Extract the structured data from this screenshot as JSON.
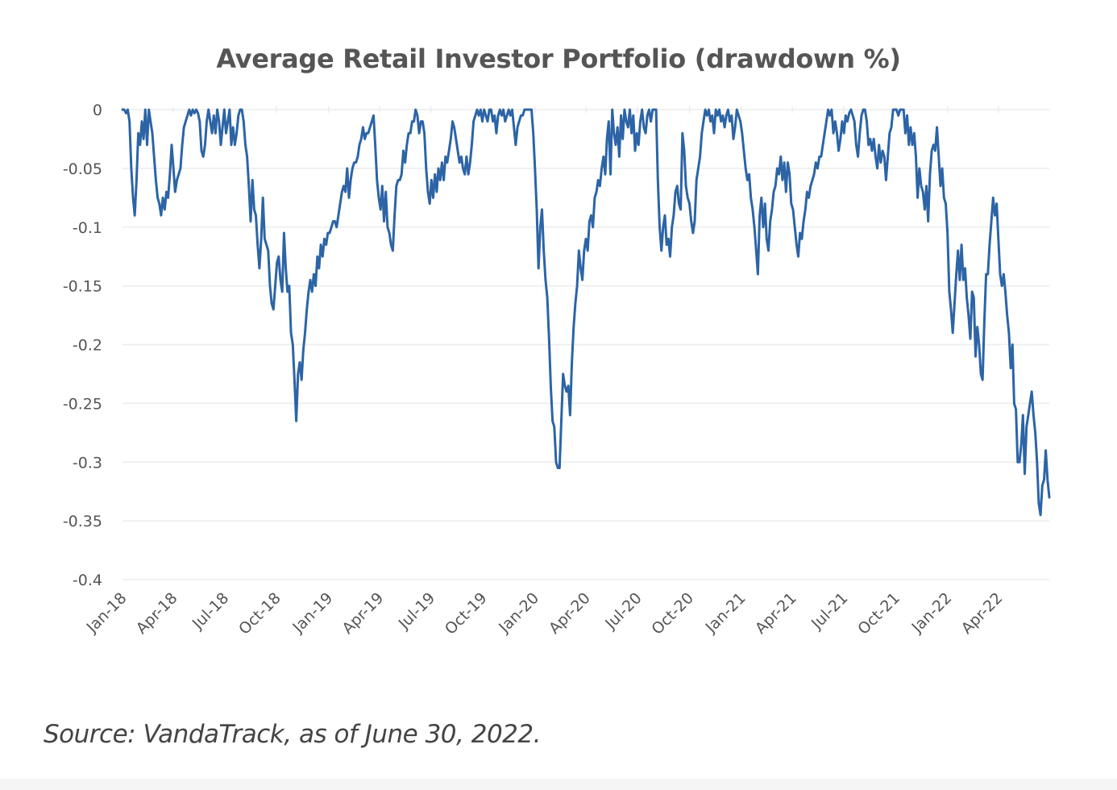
{
  "chart_data": {
    "type": "line",
    "title": "Average Retail Investor Portfolio (drawdown %)",
    "xlabel": "",
    "ylabel": "",
    "ylim": [
      -0.4,
      0
    ],
    "yticks": [
      "0",
      "-0.05",
      "-0.1",
      "-0.15",
      "-0.2",
      "-0.25",
      "-0.3",
      "-0.35",
      "-0.4"
    ],
    "ytick_values": [
      0,
      -0.05,
      -0.1,
      -0.15,
      -0.2,
      -0.25,
      -0.3,
      -0.35,
      -0.4
    ],
    "xticks": [
      "Jan-18",
      "Apr-18",
      "Jul-18",
      "Oct-18",
      "Jan-19",
      "Apr-19",
      "Jul-19",
      "Oct-19",
      "Jan-20",
      "Apr-20",
      "Jul-20",
      "Oct-20",
      "Jan-21",
      "Apr-21",
      "Jul-21",
      "Oct-21",
      "Jan-22",
      "Apr-22"
    ],
    "x_range": [
      "2018-01-01",
      "2022-06-30"
    ],
    "grid": true,
    "legend": "none",
    "series": [
      {
        "name": "Average Retail Investor Portfolio",
        "color": "#2c64a6",
        "sampling": "approximately equally spaced samples from 2018-01-01 to 2022-06-30",
        "values": [
          0,
          0,
          -0.003,
          0,
          -0.01,
          -0.05,
          -0.075,
          -0.09,
          -0.06,
          -0.02,
          -0.03,
          -0.01,
          -0.025,
          0,
          -0.03,
          0,
          -0.01,
          -0.02,
          -0.04,
          -0.06,
          -0.075,
          -0.08,
          -0.09,
          -0.075,
          -0.085,
          -0.07,
          -0.075,
          -0.055,
          -0.03,
          -0.05,
          -0.07,
          -0.06,
          -0.055,
          -0.05,
          -0.03,
          -0.015,
          -0.01,
          -0.005,
          0,
          -0.005,
          0,
          -0.003,
          0,
          -0.003,
          -0.01,
          -0.035,
          -0.04,
          -0.03,
          -0.01,
          0,
          -0.01,
          -0.02,
          -0.005,
          -0.02,
          0,
          -0.01,
          -0.03,
          -0.015,
          0,
          -0.02,
          -0.01,
          0,
          -0.03,
          -0.015,
          -0.03,
          -0.02,
          -0.005,
          0,
          0,
          -0.01,
          -0.03,
          -0.04,
          -0.065,
          -0.095,
          -0.06,
          -0.085,
          -0.09,
          -0.115,
          -0.135,
          -0.11,
          -0.075,
          -0.11,
          -0.115,
          -0.12,
          -0.15,
          -0.165,
          -0.17,
          -0.15,
          -0.13,
          -0.125,
          -0.145,
          -0.155,
          -0.105,
          -0.135,
          -0.155,
          -0.15,
          -0.19,
          -0.2,
          -0.23,
          -0.265,
          -0.225,
          -0.215,
          -0.23,
          -0.205,
          -0.19,
          -0.17,
          -0.155,
          -0.145,
          -0.155,
          -0.14,
          -0.15,
          -0.125,
          -0.135,
          -0.115,
          -0.125,
          -0.11,
          -0.115,
          -0.105,
          -0.105,
          -0.1,
          -0.095,
          -0.095,
          -0.1,
          -0.09,
          -0.08,
          -0.07,
          -0.065,
          -0.07,
          -0.05,
          -0.075,
          -0.06,
          -0.05,
          -0.045,
          -0.045,
          -0.04,
          -0.03,
          -0.025,
          -0.015,
          -0.025,
          -0.02,
          -0.02,
          -0.015,
          -0.01,
          -0.005,
          -0.03,
          -0.06,
          -0.075,
          -0.085,
          -0.065,
          -0.095,
          -0.07,
          -0.1,
          -0.105,
          -0.115,
          -0.12,
          -0.09,
          -0.065,
          -0.06,
          -0.06,
          -0.055,
          -0.035,
          -0.045,
          -0.03,
          -0.02,
          -0.02,
          -0.01,
          -0.01,
          0,
          -0.005,
          -0.02,
          -0.01,
          -0.01,
          -0.02,
          -0.05,
          -0.07,
          -0.08,
          -0.06,
          -0.075,
          -0.055,
          -0.07,
          -0.05,
          -0.06,
          -0.045,
          -0.06,
          -0.04,
          -0.045,
          -0.035,
          -0.025,
          -0.01,
          -0.015,
          -0.025,
          -0.035,
          -0.045,
          -0.04,
          -0.05,
          -0.055,
          -0.04,
          -0.055,
          -0.045,
          -0.03,
          -0.01,
          -0.005,
          0,
          -0.005,
          0,
          -0.01,
          0,
          -0.005,
          -0.01,
          0,
          0,
          -0.01,
          -0.005,
          -0.02,
          -0.005,
          0,
          -0.005,
          0,
          -0.01,
          -0.005,
          0,
          -0.005,
          0,
          -0.015,
          -0.03,
          -0.015,
          -0.01,
          -0.005,
          -0.005,
          0,
          0,
          0,
          0,
          0,
          -0.02,
          -0.05,
          -0.085,
          -0.135,
          -0.1,
          -0.085,
          -0.12,
          -0.145,
          -0.16,
          -0.195,
          -0.235,
          -0.265,
          -0.27,
          -0.3,
          -0.305,
          -0.305,
          -0.265,
          -0.225,
          -0.235,
          -0.24,
          -0.235,
          -0.26,
          -0.215,
          -0.185,
          -0.165,
          -0.15,
          -0.12,
          -0.135,
          -0.145,
          -0.12,
          -0.11,
          -0.12,
          -0.095,
          -0.09,
          -0.1,
          -0.075,
          -0.07,
          -0.06,
          -0.065,
          -0.05,
          -0.04,
          -0.055,
          -0.025,
          -0.01,
          -0.055,
          0,
          -0.02,
          -0.03,
          -0.015,
          -0.04,
          -0.005,
          -0.025,
          0,
          -0.01,
          -0.015,
          0,
          -0.02,
          -0.005,
          -0.035,
          -0.02,
          -0.03,
          -0.01,
          0,
          -0.015,
          -0.02,
          -0.005,
          0,
          -0.01,
          0,
          0,
          0,
          -0.06,
          -0.1,
          -0.12,
          -0.1,
          -0.09,
          -0.115,
          -0.11,
          -0.125,
          -0.1,
          -0.09,
          -0.07,
          -0.065,
          -0.08,
          -0.085,
          -0.02,
          -0.035,
          -0.065,
          -0.075,
          -0.08,
          -0.095,
          -0.105,
          -0.095,
          -0.06,
          -0.05,
          -0.04,
          -0.02,
          -0.01,
          0,
          -0.005,
          0,
          -0.01,
          -0.005,
          -0.02,
          0,
          -0.005,
          0,
          -0.01,
          -0.005,
          -0.015,
          -0.005,
          0,
          -0.01,
          -0.005,
          -0.025,
          -0.015,
          0,
          -0.005,
          -0.01,
          -0.02,
          -0.035,
          -0.05,
          -0.06,
          -0.055,
          -0.075,
          -0.085,
          -0.1,
          -0.12,
          -0.14,
          -0.09,
          -0.075,
          -0.1,
          -0.08,
          -0.11,
          -0.12,
          -0.095,
          -0.085,
          -0.07,
          -0.065,
          -0.05,
          -0.055,
          -0.04,
          -0.06,
          -0.045,
          -0.07,
          -0.045,
          -0.055,
          -0.08,
          -0.085,
          -0.1,
          -0.115,
          -0.125,
          -0.105,
          -0.11,
          -0.095,
          -0.085,
          -0.07,
          -0.075,
          -0.065,
          -0.06,
          -0.055,
          -0.045,
          -0.05,
          -0.04,
          -0.04,
          -0.03,
          -0.02,
          -0.01,
          0,
          -0.005,
          0,
          -0.02,
          -0.01,
          -0.02,
          -0.035,
          -0.025,
          -0.01,
          -0.02,
          -0.005,
          -0.01,
          -0.003,
          0,
          -0.005,
          -0.01,
          -0.03,
          -0.04,
          -0.02,
          -0.005,
          0,
          0,
          -0.01,
          -0.03,
          -0.025,
          -0.035,
          -0.025,
          -0.04,
          -0.05,
          -0.03,
          -0.045,
          -0.035,
          -0.04,
          -0.06,
          -0.04,
          -0.02,
          -0.015,
          0,
          0,
          0,
          -0.005,
          0,
          0,
          0,
          -0.02,
          -0.005,
          -0.03,
          -0.015,
          -0.03,
          -0.02,
          -0.04,
          -0.075,
          -0.05,
          -0.065,
          -0.07,
          -0.085,
          -0.065,
          -0.095,
          -0.055,
          -0.035,
          -0.03,
          -0.035,
          -0.015,
          -0.04,
          -0.065,
          -0.05,
          -0.075,
          -0.08,
          -0.105,
          -0.155,
          -0.17,
          -0.19,
          -0.165,
          -0.14,
          -0.12,
          -0.145,
          -0.115,
          -0.145,
          -0.135,
          -0.16,
          -0.175,
          -0.195,
          -0.155,
          -0.16,
          -0.21,
          -0.185,
          -0.2,
          -0.225,
          -0.23,
          -0.18,
          -0.14,
          -0.14,
          -0.115,
          -0.095,
          -0.075,
          -0.09,
          -0.08,
          -0.11,
          -0.14,
          -0.15,
          -0.14,
          -0.155,
          -0.175,
          -0.19,
          -0.22,
          -0.2,
          -0.25,
          -0.255,
          -0.3,
          -0.3,
          -0.285,
          -0.26,
          -0.31,
          -0.27,
          -0.26,
          -0.25,
          -0.24,
          -0.26,
          -0.275,
          -0.3,
          -0.335,
          -0.345,
          -0.32,
          -0.315,
          -0.29,
          -0.315,
          -0.33
        ]
      }
    ]
  },
  "source_note": "Source: VandaTrack, as of June 30, 2022."
}
